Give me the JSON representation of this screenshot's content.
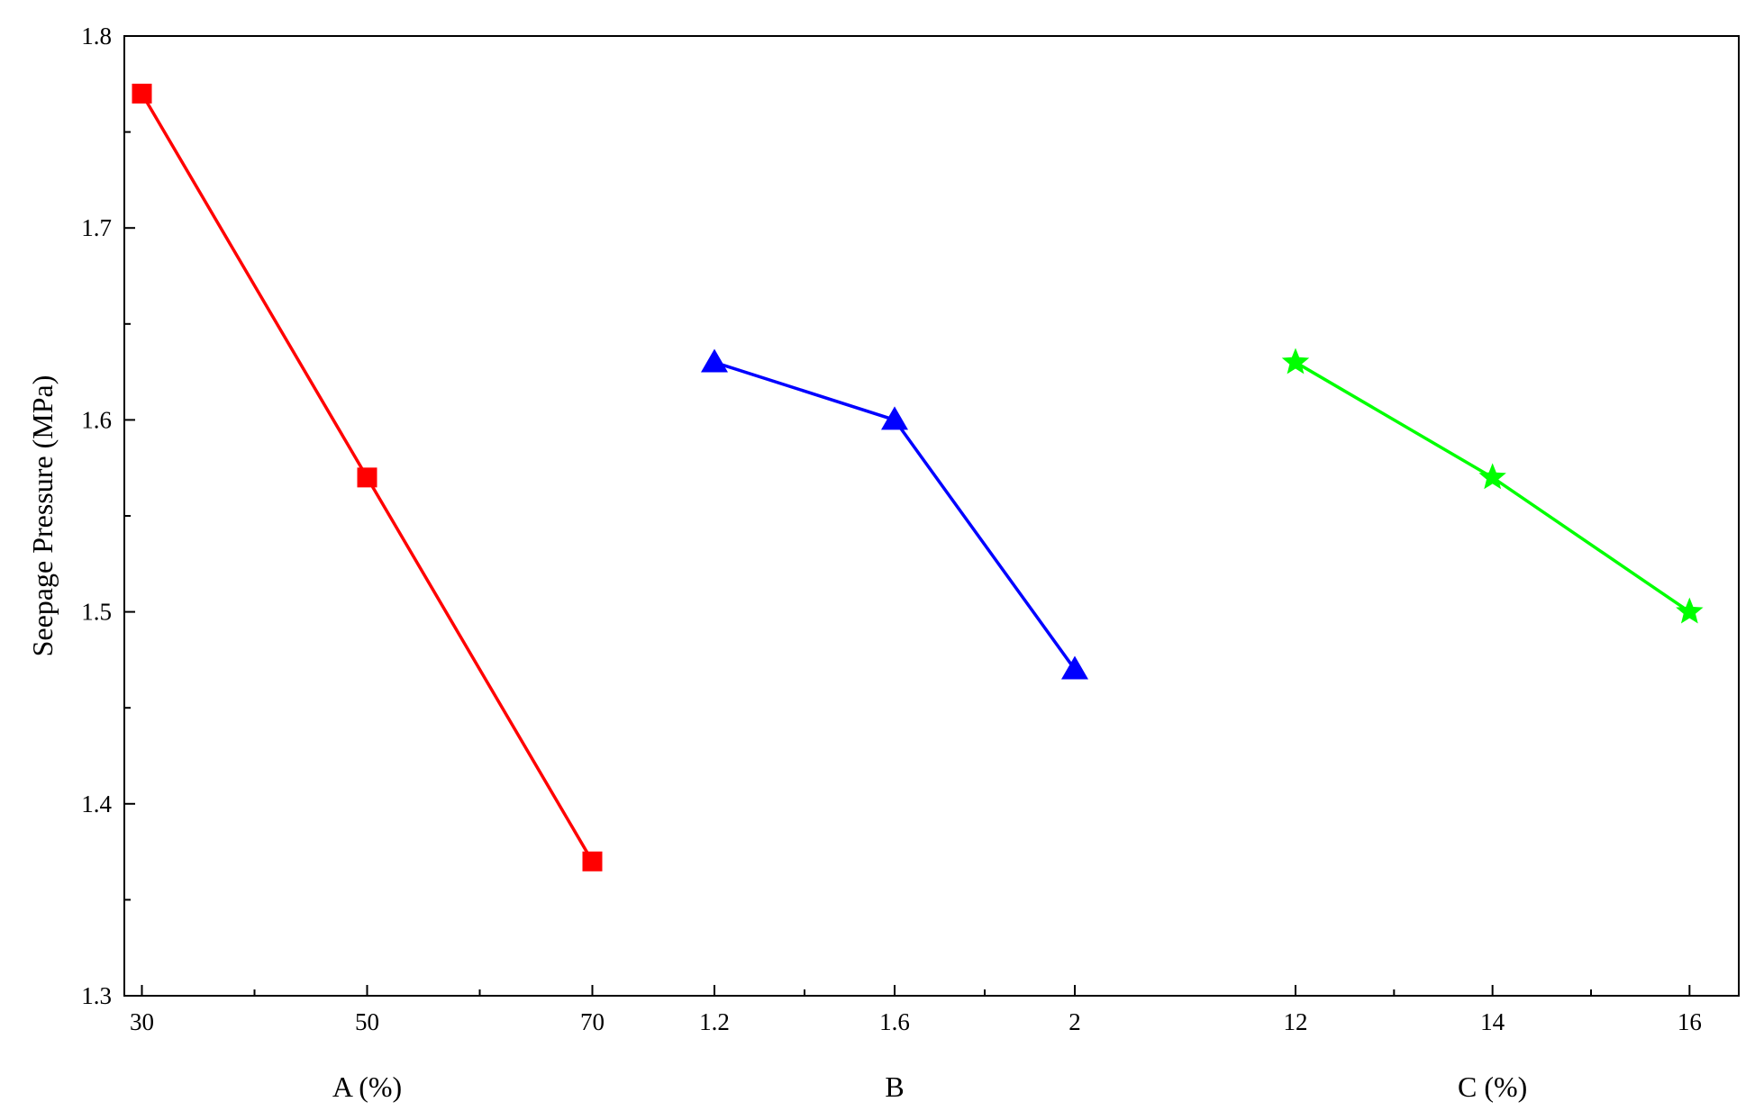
{
  "chart_data": {
    "type": "line",
    "ylabel": "Seepage Pressure (MPa)",
    "ylim": [
      1.3,
      1.8
    ],
    "yticks": [
      1.3,
      1.4,
      1.5,
      1.6,
      1.7,
      1.8
    ],
    "grid": false,
    "panels": [
      {
        "xlabel": "A (%)",
        "xlim": [
          29,
          75
        ],
        "xticks": [
          30,
          50,
          70
        ],
        "tick_labels": [
          "30",
          "50",
          "70"
        ],
        "minor_ticks": [
          40,
          60
        ],
        "series": [
          {
            "color": "#ff0000",
            "marker": "square",
            "x": [
              30,
              50,
              70
            ],
            "y": [
              1.77,
              1.57,
              1.37
            ]
          }
        ]
      },
      {
        "xlabel": "B",
        "xlim": [
          1.2,
          2.2
        ],
        "xticks": [
          1.2,
          1.6,
          2.0
        ],
        "tick_labels": [
          "1.2",
          "1.6",
          "2"
        ],
        "minor_ticks": [
          1.4,
          1.8
        ],
        "series": [
          {
            "color": "#0000ff",
            "marker": "triangle",
            "x": [
              1.2,
              1.6,
              2.0
            ],
            "y": [
              1.63,
              1.6,
              1.47
            ]
          }
        ]
      },
      {
        "xlabel": "C (%)",
        "xlim": [
          12,
          16.5
        ],
        "xticks": [
          12,
          14,
          16
        ],
        "tick_labels": [
          "12",
          "14",
          "16"
        ],
        "minor_ticks": [
          13,
          15
        ],
        "series": [
          {
            "color": "#00ff00",
            "marker": "star",
            "x": [
              12,
              14,
              16
            ],
            "y": [
              1.63,
              1.57,
              1.5
            ]
          }
        ]
      }
    ]
  }
}
